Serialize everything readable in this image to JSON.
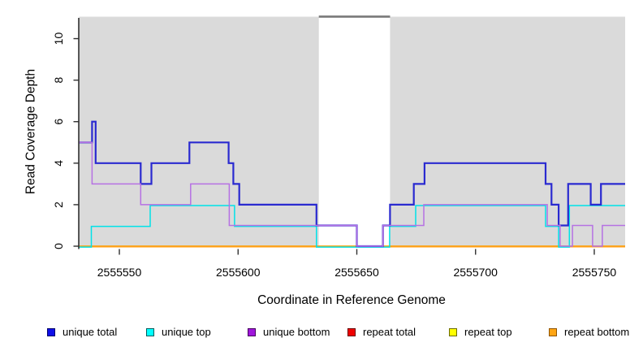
{
  "figure": {
    "background": "#ffffff"
  },
  "chart_data": {
    "type": "step-line coverage plot",
    "title": "",
    "xlabel": "Coordinate in Reference Genome",
    "ylabel": "Read Coverage Depth",
    "xlim": [
      2555533,
      2555763
    ],
    "ylim": [
      0,
      11
    ],
    "x_ticks": [
      2555550,
      2555600,
      2555650,
      2555700,
      2555750
    ],
    "y_ticks": [
      0,
      2,
      4,
      6,
      8,
      10
    ],
    "grid": false,
    "panel_color": "#dadada",
    "shaded_regions": [
      [
        2555533,
        2555634
      ],
      [
        2555664,
        2555763
      ]
    ],
    "gap_region": [
      2555634,
      2555664
    ],
    "gap_marker_color": "#7a7a7a",
    "top_edge_color": "#d0d0d0",
    "axis_color": "#303030",
    "series": [
      {
        "name": "repeat total",
        "color": "#e00000",
        "width": 1.4,
        "steps": [
          [
            2555533,
            0
          ]
        ]
      },
      {
        "name": "repeat top",
        "color": "#ffff00",
        "width": 1.4,
        "steps": [
          [
            2555533,
            0
          ]
        ]
      },
      {
        "name": "repeat bottom",
        "color": "#ff9f1a",
        "width": 2.0,
        "steps": [
          [
            2555533,
            0
          ]
        ]
      },
      {
        "name": "unique top",
        "color": "#00e2e8",
        "width": 1.5,
        "steps": [
          [
            2555533,
            0
          ],
          [
            2555538.2,
            1
          ],
          [
            2555563,
            2
          ],
          [
            2555598.5,
            1
          ],
          [
            2555633,
            0
          ],
          [
            2555663.8,
            1
          ],
          [
            2555674.8,
            2
          ],
          [
            2555729.5,
            1
          ],
          [
            2555735,
            0
          ],
          [
            2555739.5,
            2
          ]
        ]
      },
      {
        "name": "unique total",
        "color": "#2a2ad0",
        "width": 2.2,
        "steps": [
          [
            2555533,
            5
          ],
          [
            2555538.5,
            6
          ],
          [
            2555540,
            4
          ],
          [
            2555559,
            3
          ],
          [
            2555563.5,
            4
          ],
          [
            2555579.5,
            5
          ],
          [
            2555596,
            4
          ],
          [
            2555598,
            3
          ],
          [
            2555600.5,
            2
          ],
          [
            2555633,
            1
          ],
          [
            2555650,
            0
          ],
          [
            2555661,
            1
          ],
          [
            2555664,
            2
          ],
          [
            2555674,
            3
          ],
          [
            2555678.5,
            4
          ],
          [
            2555729.5,
            3
          ],
          [
            2555732,
            2
          ],
          [
            2555735,
            1
          ],
          [
            2555739,
            3
          ],
          [
            2555748.5,
            2
          ],
          [
            2555752.8,
            3
          ]
        ]
      },
      {
        "name": "unique bottom",
        "color": "#b671e3",
        "width": 1.5,
        "steps": [
          [
            2555533,
            5
          ],
          [
            2555538.5,
            3
          ],
          [
            2555559,
            2
          ],
          [
            2555580,
            3
          ],
          [
            2555596.3,
            1
          ],
          [
            2555650,
            0
          ],
          [
            2555661,
            1
          ],
          [
            2555678.2,
            2
          ],
          [
            2555730.2,
            1
          ],
          [
            2555735.6,
            0
          ],
          [
            2555740.8,
            1
          ],
          [
            2555749.3,
            0
          ],
          [
            2555753.4,
            1
          ]
        ]
      }
    ]
  },
  "legend": {
    "items": [
      {
        "label": "unique total",
        "fill": "#0f0fe8",
        "border": "#00006b"
      },
      {
        "label": "unique top",
        "fill": "#00ffff",
        "border": "#005c5c"
      },
      {
        "label": "unique bottom",
        "fill": "#a016dc",
        "border": "#46005f"
      },
      {
        "label": "repeat total",
        "fill": "#ef0000",
        "border": "#6b0000"
      },
      {
        "label": "repeat top",
        "fill": "#ffff00",
        "border": "#6b6b00"
      },
      {
        "label": "repeat bottom",
        "fill": "#ffa513",
        "border": "#8f5400"
      }
    ]
  }
}
